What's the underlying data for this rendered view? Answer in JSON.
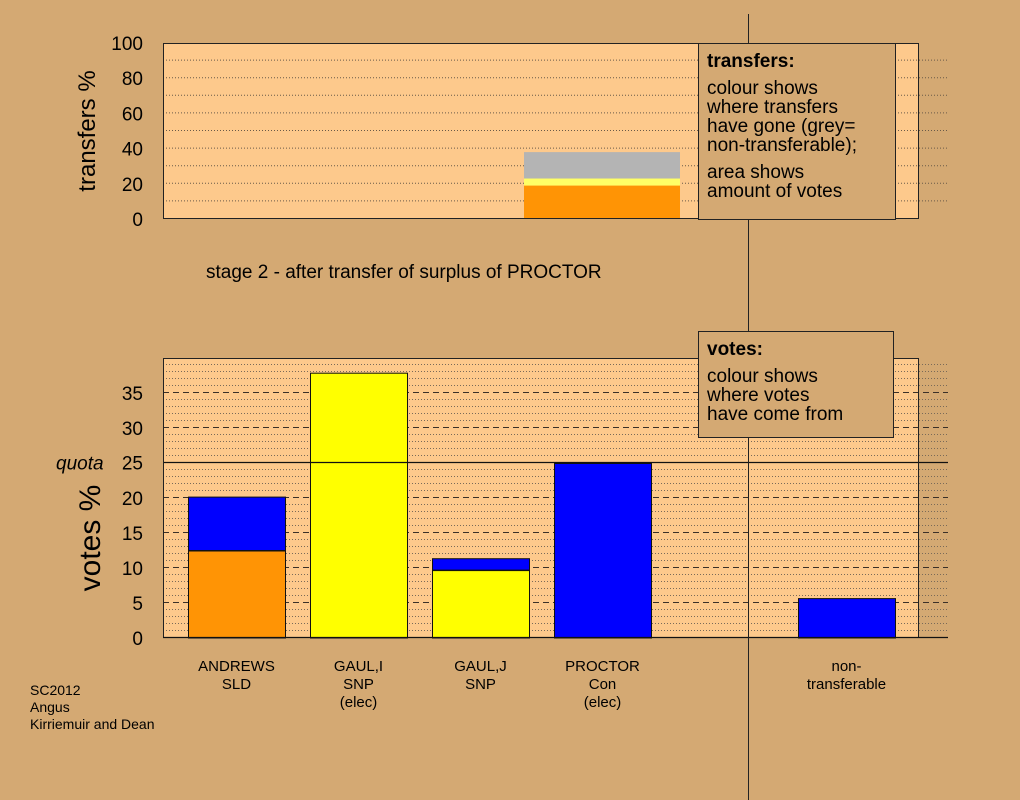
{
  "stage_title": "stage 2 - after transfer of surplus of PROCTOR",
  "footer": [
    "SC2012",
    "Angus",
    "Kirriemuir and Dean"
  ],
  "legend_transfers": {
    "title": "transfers:",
    "lines_a": [
      "colour shows",
      "where transfers",
      "have gone (grey=",
      "non-transferable);"
    ],
    "lines_b": [
      "area shows",
      "amount of votes"
    ]
  },
  "legend_votes": {
    "title": "votes:",
    "lines": [
      "colour shows",
      "where votes",
      "have come from"
    ]
  },
  "colors": {
    "background": "#d4a973",
    "plot": "#fdc98c",
    "orange": "#ff9405",
    "yellow": "#ffff00",
    "blue": "#0000ff",
    "grey": "#b4b4b4",
    "pale_yellow": "#ffff66"
  },
  "chart_data": [
    {
      "type": "bar",
      "stacked": true,
      "ylabel": "transfers %",
      "ylim": [
        0,
        100
      ],
      "yticks": [
        0,
        20,
        40,
        60,
        80,
        100
      ],
      "bars": [
        {
          "category": "PROCTOR",
          "segments": [
            {
              "color": "orange",
              "value": 19
            },
            {
              "color": "pale_yellow",
              "value": 4
            },
            {
              "color": "grey",
              "value": 15
            }
          ]
        }
      ]
    },
    {
      "type": "bar",
      "stacked": true,
      "ylabel": "votes %",
      "ylim": [
        0,
        40
      ],
      "yticks": [
        0,
        5,
        10,
        15,
        20,
        25,
        30,
        35
      ],
      "quota": {
        "label": "quota",
        "value": 25
      },
      "categories": [
        {
          "lines": [
            "ANDREWS",
            "SLD"
          ],
          "segments": [
            {
              "color": "orange",
              "value": 12.5
            },
            {
              "color": "blue",
              "value": 7.7
            }
          ]
        },
        {
          "lines": [
            "GAUL,I",
            "SNP",
            "(elec)"
          ],
          "segments": [
            {
              "color": "yellow",
              "value": 37.9
            }
          ]
        },
        {
          "lines": [
            "GAUL,J",
            "SNP"
          ],
          "segments": [
            {
              "color": "yellow",
              "value": 9.7
            },
            {
              "color": "blue",
              "value": 1.7
            }
          ]
        },
        {
          "lines": [
            "PROCTOR",
            "Con",
            "(elec)"
          ],
          "segments": [
            {
              "color": "blue",
              "value": 25
            }
          ]
        },
        {
          "lines": [],
          "segments": []
        },
        {
          "lines": [
            "non-",
            "transferable"
          ],
          "segments": [
            {
              "color": "blue",
              "value": 5.7
            }
          ]
        }
      ]
    }
  ]
}
